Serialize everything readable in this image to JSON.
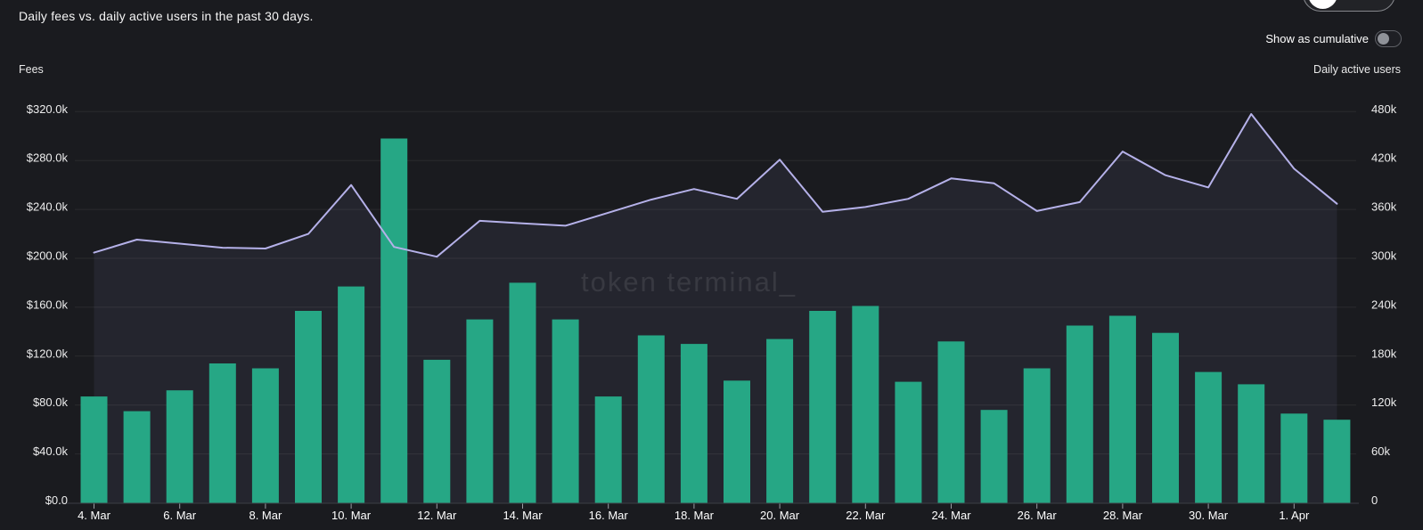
{
  "header": {
    "title": "Daily fees vs. daily active users in the past 30 days.",
    "cumulative_toggle": {
      "label": "Show as cumulative",
      "state": "off"
    },
    "partial_top_toggle_state": "on"
  },
  "left_axis": {
    "title": "Fees",
    "tick_labels_bottom_to_top": [
      "$0.0",
      "$40.0k",
      "$80.0k",
      "$120.0k",
      "$160.0k",
      "$200.0k",
      "$240.0k",
      "$280.0k",
      "$320.0k"
    ]
  },
  "right_axis": {
    "title": "Daily active users",
    "tick_labels_bottom_to_top": [
      "0",
      "60k",
      "120k",
      "180k",
      "240k",
      "300k",
      "360k",
      "420k",
      "480k"
    ]
  },
  "watermark": "token terminal_",
  "chart_data": {
    "type": "combo",
    "categories": [
      "4. Mar",
      "5. Mar",
      "6. Mar",
      "7. Mar",
      "8. Mar",
      "9. Mar",
      "10. Mar",
      "11. Mar",
      "12. Mar",
      "13. Mar",
      "14. Mar",
      "15. Mar",
      "16. Mar",
      "17. Mar",
      "18. Mar",
      "19. Mar",
      "20. Mar",
      "21. Mar",
      "22. Mar",
      "23. Mar",
      "24. Mar",
      "25. Mar",
      "26. Mar",
      "27. Mar",
      "28. Mar",
      "29. Mar",
      "30. Mar",
      "31. Mar",
      "1. Apr",
      "2. Apr"
    ],
    "x_tick_labels": [
      "4. Mar",
      "6. Mar",
      "8. Mar",
      "10. Mar",
      "12. Mar",
      "14. Mar",
      "16. Mar",
      "18. Mar",
      "20. Mar",
      "22. Mar",
      "24. Mar",
      "26. Mar",
      "28. Mar",
      "30. Mar",
      "1. Apr"
    ],
    "series": [
      {
        "name": "Fees",
        "type": "bar",
        "axis": "left",
        "unit": "USD thousands",
        "values": [
          87,
          75,
          92,
          114,
          110,
          157,
          177,
          298,
          117,
          150,
          180,
          150,
          87,
          137,
          130,
          100,
          134,
          157,
          161,
          99,
          132,
          76,
          110,
          145,
          153,
          139,
          107,
          97,
          73,
          68
        ]
      },
      {
        "name": "Daily active users",
        "type": "line",
        "axis": "right",
        "unit": "users thousands",
        "values": [
          307,
          323,
          318,
          313,
          312,
          330,
          390,
          314,
          302,
          346,
          343,
          340,
          356,
          372,
          385,
          373,
          421,
          357,
          363,
          373,
          398,
          392,
          358,
          369,
          431,
          402,
          387,
          477,
          410,
          367
        ]
      }
    ],
    "left_ylim_usd_k": [
      0,
      320
    ],
    "right_ylim_users_k": [
      0,
      480
    ],
    "grid": true,
    "legend": "none",
    "title": "Daily fees vs. daily active users in the past 30 days."
  },
  "colors": {
    "background": "#1a1b1f",
    "bar": "#26a785",
    "line": "#b5b1e9",
    "line_area_fill": "rgba(167,163,230,0.08)",
    "grid": "rgba(255,255,255,0.07)",
    "axis_line": "#3c3e44",
    "tick": "#9b9ea4",
    "y_label_text": "#ededed",
    "x_label_text": "#ffffff"
  }
}
